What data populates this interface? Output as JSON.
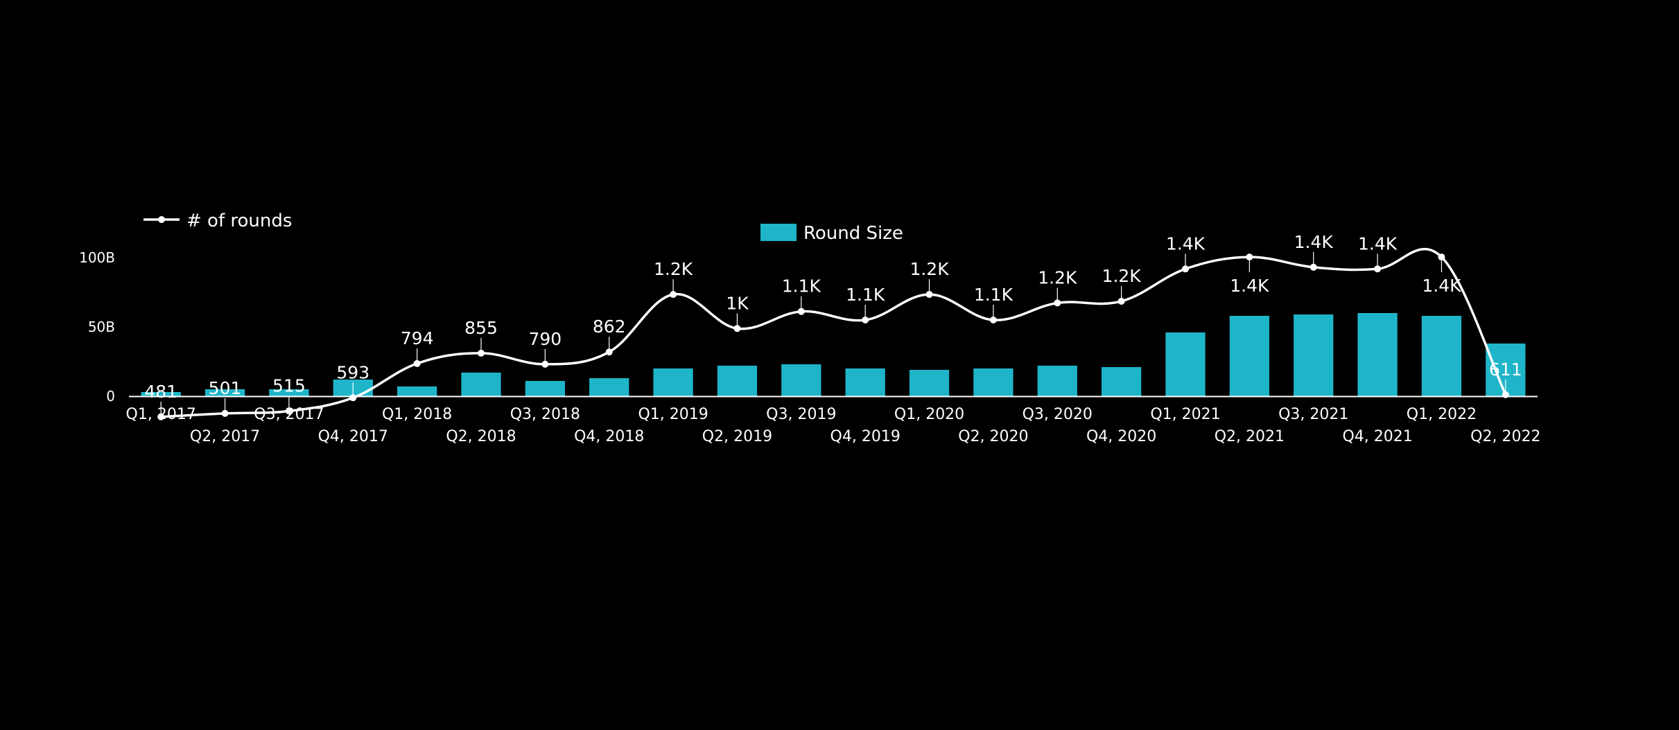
{
  "chart_data": {
    "type": "bar",
    "categories": [
      "Q1, 2017",
      "Q2, 2017",
      "Q3, 2017",
      "Q4, 2017",
      "Q1, 2018",
      "Q2, 2018",
      "Q3, 2018",
      "Q4, 2018",
      "Q1, 2019",
      "Q2, 2019",
      "Q3, 2019",
      "Q4, 2019",
      "Q1, 2020",
      "Q2, 2020",
      "Q3, 2020",
      "Q4, 2020",
      "Q1, 2021",
      "Q2, 2021",
      "Q3, 2021",
      "Q4, 2021",
      "Q1, 2022",
      "Q2, 2022"
    ],
    "yticks": [
      {
        "value": 0,
        "label": "0"
      },
      {
        "value": 50,
        "label": "50B"
      },
      {
        "value": 100,
        "label": "100B"
      }
    ],
    "ylim": [
      0,
      100
    ],
    "grid": false,
    "series": [
      {
        "name": "Round Size",
        "kind": "bar",
        "color": "#1fb5c9",
        "legend_position": "top-center",
        "values": [
          3,
          5,
          5,
          12,
          7,
          17,
          11,
          13,
          20,
          22,
          23,
          20,
          19,
          20,
          22,
          21,
          46,
          58,
          59,
          60,
          58,
          38
        ]
      },
      {
        "name": "# of rounds",
        "kind": "line",
        "color": "#ffffff",
        "legend_position": "top-left",
        "scale": [
          0,
          1750
        ],
        "values": [
          481,
          501,
          515,
          593,
          794,
          855,
          790,
          862,
          1200,
          1000,
          1100,
          1050,
          1200,
          1050,
          1150,
          1160,
          1350,
          1420,
          1360,
          1350,
          1420,
          611
        ],
        "labels": [
          "481",
          "501",
          "515",
          "593",
          "794",
          "855",
          "790",
          "862",
          "1.2K",
          "1K",
          "1.1K",
          "1.1K",
          "1.2K",
          "1.1K",
          "1.2K",
          "1.2K",
          "1.4K",
          "1.4K",
          "1.4K",
          "1.4K",
          "1.4K",
          "611"
        ],
        "label_position": [
          "above",
          "above",
          "above",
          "above",
          "above",
          "above",
          "above",
          "above",
          "above",
          "above",
          "above",
          "above",
          "above",
          "above",
          "above",
          "above",
          "above",
          "below",
          "above",
          "above",
          "below",
          "above"
        ]
      }
    ]
  }
}
